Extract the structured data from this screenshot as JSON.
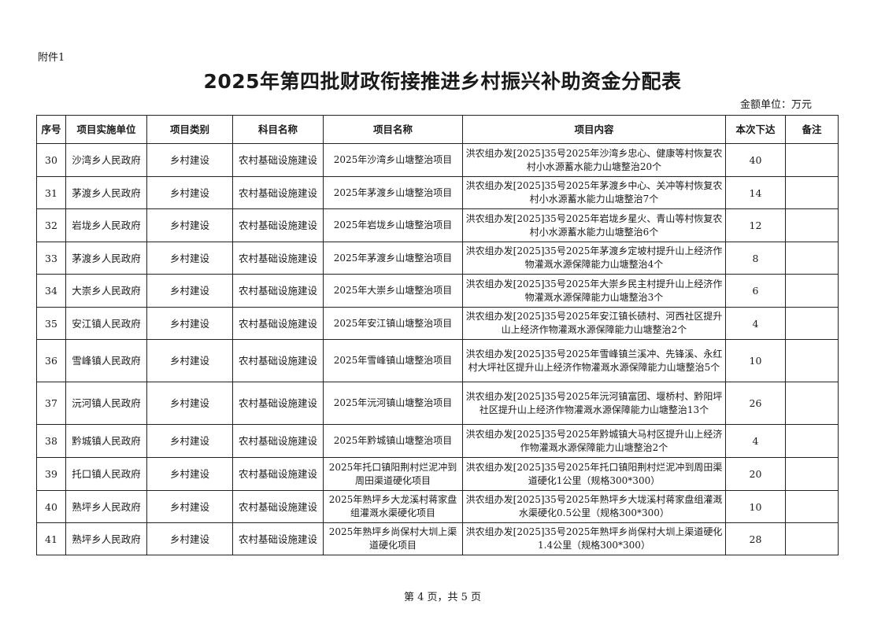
{
  "annex": "附件1",
  "title": "2025年第四批财政衔接推进乡村振兴补助资金分配表",
  "unit": "金额单位：万元",
  "columns": [
    "序号",
    "项目实施单位",
    "项目类别",
    "科目名称",
    "项目名称",
    "项目内容",
    "本次下达",
    "备注"
  ],
  "rows": [
    {
      "no": "30",
      "unit": "沙湾乡人民政府",
      "category": "乡村建设",
      "subject": "农村基础设施建设",
      "name": "2025年沙湾乡山塘整治项目",
      "content": "洪农组办发[2025]35号2025年沙湾乡忠心、健康等村恢复农村小水源蓄水能力山塘整治20个",
      "amount": "40",
      "note": ""
    },
    {
      "no": "31",
      "unit": "茅渡乡人民政府",
      "category": "乡村建设",
      "subject": "农村基础设施建设",
      "name": "2025年茅渡乡山塘整治项目",
      "content": "洪农组办发[2025]35号2025年茅渡乡中心、关冲等村恢复农村小水源蓄水能力山塘整治7个",
      "amount": "14",
      "note": ""
    },
    {
      "no": "32",
      "unit": "岩垅乡人民政府",
      "category": "乡村建设",
      "subject": "农村基础设施建设",
      "name": "2025年岩垅乡山塘整治项目",
      "content": "洪农组办发[2025]35号2025年岩垅乡星火、青山等村恢复农村小水源蓄水能力山塘整治6个",
      "amount": "12",
      "note": ""
    },
    {
      "no": "33",
      "unit": "茅渡乡人民政府",
      "category": "乡村建设",
      "subject": "农村基础设施建设",
      "name": "2025年茅渡乡山塘整治项目",
      "content": "洪农组办发[2025]35号2025年茅渡乡定坡村提升山上经济作物灌溉水源保障能力山塘整治4个",
      "amount": "8",
      "note": ""
    },
    {
      "no": "34",
      "unit": "大崇乡人民政府",
      "category": "乡村建设",
      "subject": "农村基础设施建设",
      "name": "2025年大崇乡山塘整治项目",
      "content": "洪农组办发[2025]35号2025年大崇乡民主村提升山上经济作物灌溉水源保障能力山塘整治3个",
      "amount": "6",
      "note": ""
    },
    {
      "no": "35",
      "unit": "安江镇人民政府",
      "category": "乡村建设",
      "subject": "农村基础设施建设",
      "name": "2025年安江镇山塘整治项目",
      "content": "洪农组办发[2025]35号2025年安江镇长碛村、河西社区提升山上经济作物灌溉水源保障能力山塘整治2个",
      "amount": "4",
      "note": ""
    },
    {
      "no": "36",
      "unit": "雪峰镇人民政府",
      "category": "乡村建设",
      "subject": "农村基础设施建设",
      "name": "2025年雪峰镇山塘整治项目",
      "content": "洪农组办发[2025]35号2025年雪峰镇兰溪冲、先锋溪、永红村大坪社区提升山上经济作物灌溉水源保障能力山塘整治5个",
      "amount": "10",
      "note": ""
    },
    {
      "no": "37",
      "unit": "沅河镇人民政府",
      "category": "乡村建设",
      "subject": "农村基础设施建设",
      "name": "2025年沅河镇山塘整治项目",
      "content": "洪农组办发[2025]35号2025年沅河镇富团、堰桥村、黔阳坪社区提升山上经济作物灌溉水源保障能力山塘整治13个",
      "amount": "26",
      "note": ""
    },
    {
      "no": "38",
      "unit": "黔城镇人民政府",
      "category": "乡村建设",
      "subject": "农村基础设施建设",
      "name": "2025年黔城镇山塘整治项目",
      "content": "洪农组办发[2025]35号2025年黔城镇大马村区提升山上经济作物灌溉水源保障能力山塘整治2个",
      "amount": "4",
      "note": ""
    },
    {
      "no": "39",
      "unit": "托口镇人民政府",
      "category": "乡村建设",
      "subject": "农村基础设施建设",
      "name": "2025年托口镇阳荆村烂泥冲到周田渠道硬化项目",
      "content": "洪农组办发[2025]35号2025年托口镇阳荆村烂泥冲到周田渠道硬化1公里（规格300*300）",
      "amount": "20",
      "note": ""
    },
    {
      "no": "40",
      "unit": "熟坪乡人民政府",
      "category": "乡村建设",
      "subject": "农村基础设施建设",
      "name": "2025年熟坪乡大龙溪村蒋家盘组灌溉水渠硬化项目",
      "content": "洪农组办发[2025]35号2025年熟坪乡大垅溪村蒋家盘组灌溉水渠硬化0.5公里（规格300*300）",
      "amount": "10",
      "note": ""
    },
    {
      "no": "41",
      "unit": "熟坪乡人民政府",
      "category": "乡村建设",
      "subject": "农村基础设施建设",
      "name": "2025年熟坪乡尚保村大圳上渠道硬化项目",
      "content": "洪农组办发[2025]35号2025年熟坪乡尚保村大圳上渠道硬化1.4公里（规格300*300）",
      "amount": "28",
      "note": ""
    }
  ],
  "footer": "第 4 页，共 5 页"
}
